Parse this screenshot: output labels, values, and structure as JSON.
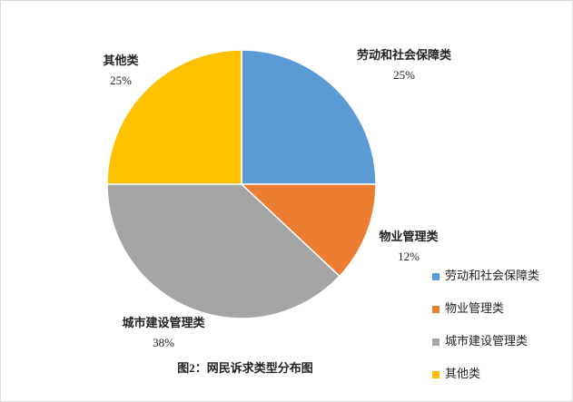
{
  "chart_data": {
    "type": "pie",
    "title": "图2：网民诉求类型分布图",
    "categories": [
      "劳动和社会保障类",
      "物业管理类",
      "城市建设管理类",
      "其他类"
    ],
    "values": [
      25,
      12,
      38,
      25
    ],
    "value_labels": [
      "25%",
      "12%",
      "38%",
      "25%"
    ],
    "colors": [
      "#5b9bd5",
      "#ed7d31",
      "#a5a5a5",
      "#ffc000"
    ],
    "legend": "right"
  }
}
